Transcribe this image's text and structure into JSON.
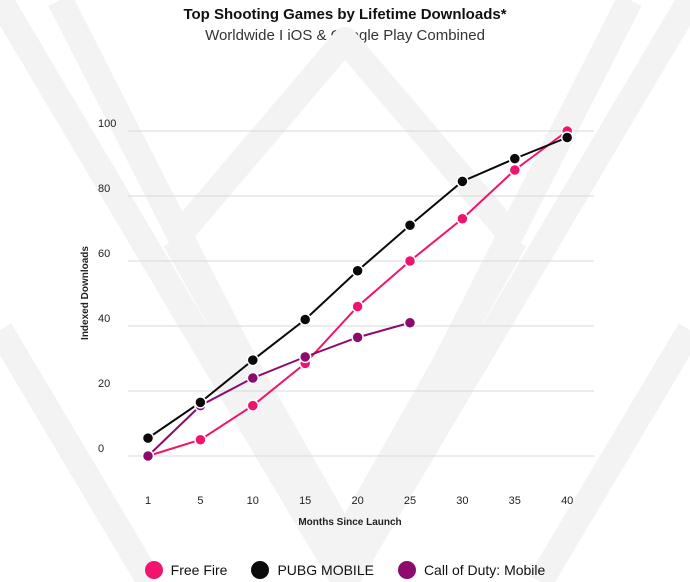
{
  "colors": {
    "free_fire": "#f0146e",
    "pubg": "#0a0a0a",
    "cod": "#8e0b6e",
    "grid": "#d9d9d9",
    "watermark": "#f3f3f3"
  },
  "chart_data": {
    "type": "line",
    "title": "Top Shooting Games by Lifetime Downloads*",
    "subtitle": "Worldwide I iOS & Google Play Combined",
    "xlabel": "Months Since Launch",
    "ylabel": "Indexed Downloads",
    "categories": [
      "1",
      "5",
      "10",
      "15",
      "20",
      "25",
      "30",
      "35",
      "40"
    ],
    "ylim": [
      0,
      100
    ],
    "yticks": [
      0,
      20,
      40,
      60,
      80,
      100
    ],
    "grid": true,
    "legend_position": "bottom",
    "series": [
      {
        "name": "Free Fire",
        "color": "#f0146e",
        "values": [
          0,
          5,
          15.5,
          28.5,
          46,
          60,
          73,
          88,
          100
        ]
      },
      {
        "name": "PUBG MOBILE",
        "color": "#0a0a0a",
        "values": [
          5.5,
          16.5,
          29.5,
          42,
          57,
          71,
          84.5,
          91.5,
          98
        ]
      },
      {
        "name": "Call of Duty: Mobile",
        "color": "#8e0b6e",
        "values": [
          0,
          15.5,
          24,
          30.5,
          36.5,
          41,
          null,
          null,
          null
        ]
      }
    ]
  }
}
